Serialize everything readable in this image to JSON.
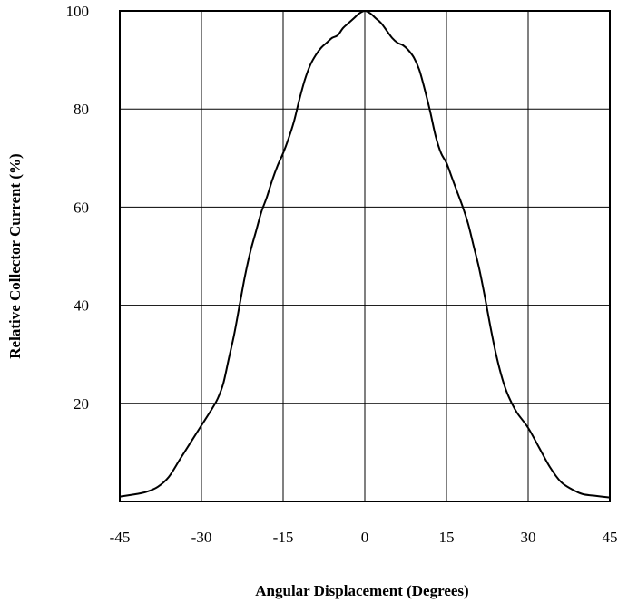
{
  "chart_data": {
    "type": "line",
    "xlabel": "Angular Displacement (Degrees)",
    "ylabel": "Relative Collector Current (%)",
    "xlim": [
      -45,
      45
    ],
    "ylim": [
      0,
      100
    ],
    "x_ticks": [
      -45,
      -30,
      -15,
      0,
      15,
      30,
      45
    ],
    "y_ticks": [
      20,
      40,
      60,
      80,
      100
    ],
    "grid": true,
    "series": [
      {
        "x": [
          -45,
          -42,
          -40,
          -38,
          -36,
          -34,
          -32,
          -30,
          -28,
          -27,
          -26,
          -25,
          -24,
          -23,
          -22,
          -21,
          -20,
          -19,
          -18,
          -17,
          -16,
          -15,
          -14,
          -13,
          -12,
          -11,
          -10,
          -9,
          -8,
          -7,
          -6,
          -5,
          -4,
          -3,
          -2,
          -1,
          0,
          1,
          2,
          3,
          4,
          5,
          6,
          7,
          8,
          9,
          10,
          11,
          12,
          13,
          14,
          15,
          16,
          17,
          18,
          19,
          20,
          21,
          22,
          23,
          24,
          25,
          26,
          27,
          28,
          30,
          32,
          34,
          36,
          38,
          40,
          42,
          45
        ],
        "y": [
          1,
          1.5,
          2,
          3,
          5,
          8.5,
          12,
          15.5,
          19,
          21,
          24,
          29,
          34,
          40,
          46,
          51,
          55,
          59,
          62,
          65.5,
          68.5,
          71,
          74,
          77.5,
          82,
          86,
          89,
          91,
          92.5,
          93.5,
          94.5,
          95,
          96.5,
          97.5,
          98.5,
          99.5,
          100,
          99.5,
          98.5,
          97.5,
          96,
          94.5,
          93.5,
          93,
          92,
          90.5,
          88,
          84,
          79.5,
          74.5,
          71,
          69,
          66,
          63,
          60,
          56.5,
          52,
          47.5,
          42,
          36,
          30.5,
          26,
          22.5,
          20,
          18,
          15,
          11,
          7,
          4,
          2.5,
          1.5,
          1.2,
          0.8
        ]
      }
    ]
  }
}
